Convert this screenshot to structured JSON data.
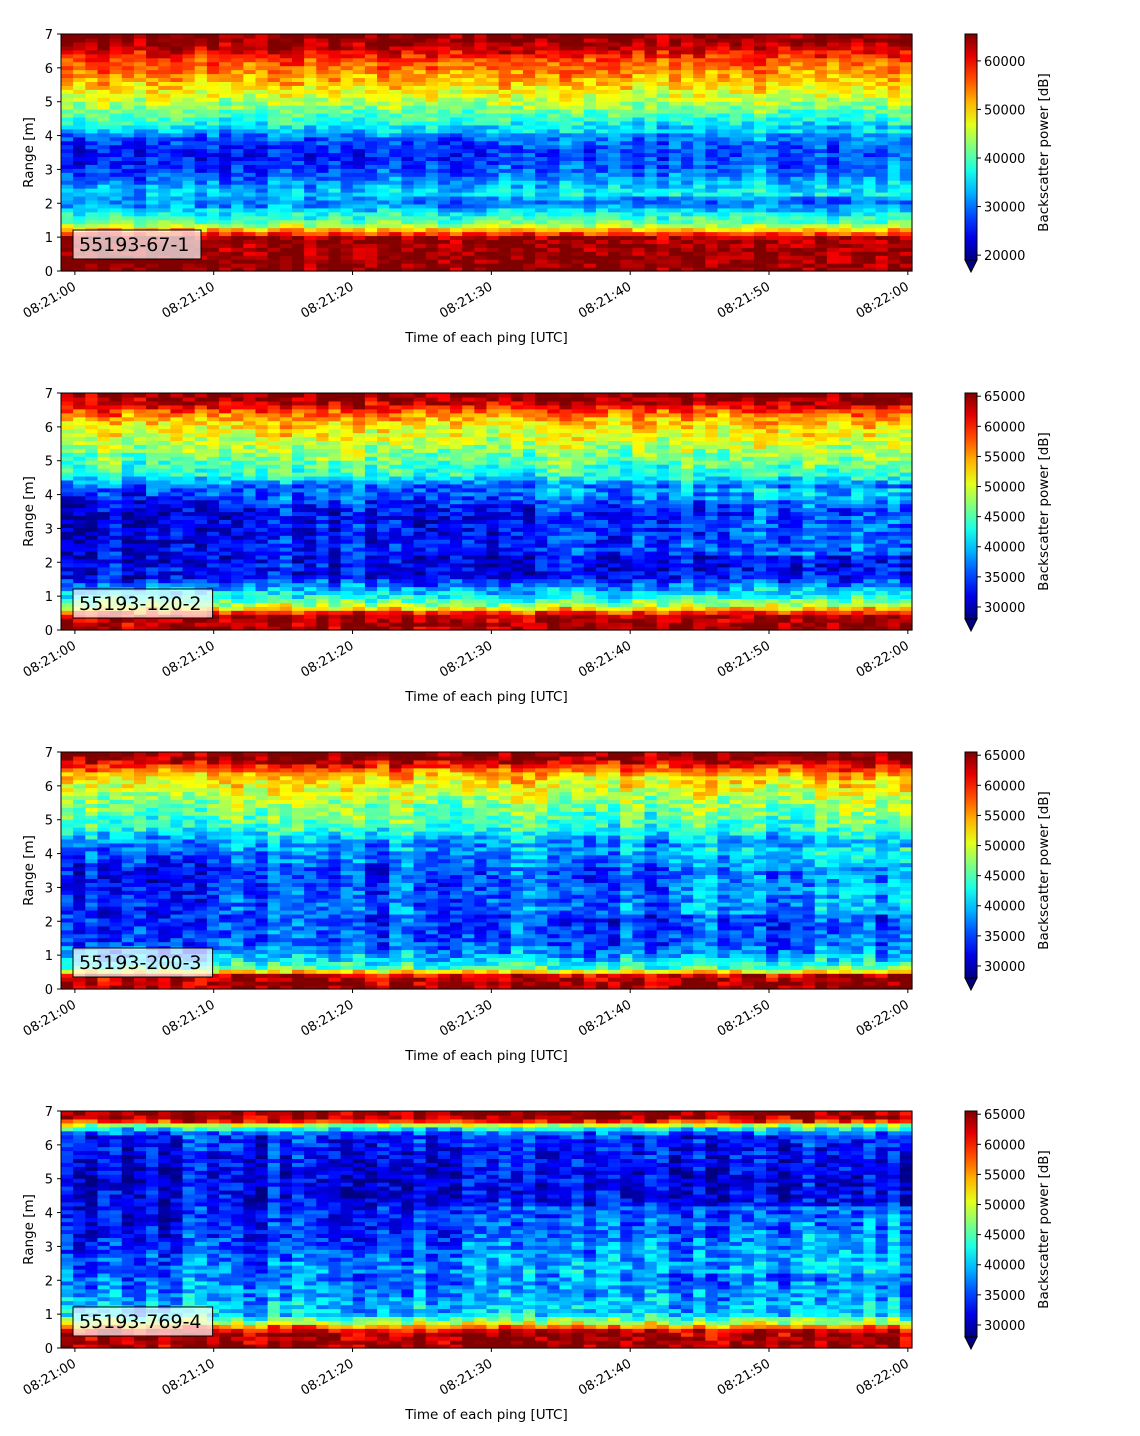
{
  "chart_data": [
    {
      "type": "heatmap",
      "label": "55193-67-1",
      "xlabel": "Time of each ping [UTC]",
      "ylabel": "Range [m]",
      "xticks": [
        "08:21:00",
        "08:21:10",
        "08:21:20",
        "08:21:30",
        "08:21:40",
        "08:21:50",
        "08:22:00"
      ],
      "xrange_seconds": [
        -1,
        60.3
      ],
      "yticks": [
        "0",
        "1",
        "2",
        "3",
        "4",
        "5",
        "6",
        "7"
      ],
      "ylim": [
        0,
        7
      ],
      "colorbar": {
        "label": "Backscatter power [dB]",
        "ticks": [
          "20000",
          "30000",
          "40000",
          "50000",
          "60000"
        ],
        "tick_values": [
          20000,
          30000,
          40000,
          50000,
          60000
        ],
        "range": [
          19000,
          65535
        ],
        "extend": "min",
        "colormap": "jet"
      },
      "profile": [
        {
          "range_m": 0.0,
          "value": 65000
        },
        {
          "range_m": 0.25,
          "value": 65000
        },
        {
          "range_m": 1.0,
          "value": 64000
        },
        {
          "range_m": 1.2,
          "value": 52000
        },
        {
          "range_m": 1.4,
          "value": 42000
        },
        {
          "range_m": 1.7,
          "value": 37000
        },
        {
          "range_m": 2.0,
          "value": 30000
        },
        {
          "range_m": 2.3,
          "value": 33000
        },
        {
          "range_m": 3.0,
          "value": 26000
        },
        {
          "range_m": 3.5,
          "value": 24000
        },
        {
          "range_m": 4.0,
          "value": 28000
        },
        {
          "range_m": 4.3,
          "value": 36000
        },
        {
          "range_m": 4.8,
          "value": 42000
        },
        {
          "range_m": 5.5,
          "value": 50000
        },
        {
          "range_m": 6.2,
          "value": 56000
        },
        {
          "range_m": 6.6,
          "value": 62000
        },
        {
          "range_m": 6.8,
          "value": 65000
        },
        {
          "range_m": 7.0,
          "value": 65000
        }
      ]
    },
    {
      "type": "heatmap",
      "label": "55193-120-2",
      "xlabel": "Time of each ping [UTC]",
      "ylabel": "Range [m]",
      "xticks": [
        "08:21:00",
        "08:21:10",
        "08:21:20",
        "08:21:30",
        "08:21:40",
        "08:21:50",
        "08:22:00"
      ],
      "xrange_seconds": [
        -1,
        60.3
      ],
      "yticks": [
        "0",
        "1",
        "2",
        "3",
        "4",
        "5",
        "6",
        "7"
      ],
      "ylim": [
        0,
        7
      ],
      "colorbar": {
        "label": "Backscatter power [dB]",
        "ticks": [
          "30000",
          "35000",
          "40000",
          "45000",
          "50000",
          "55000",
          "60000",
          "65000"
        ],
        "tick_values": [
          30000,
          35000,
          40000,
          45000,
          50000,
          55000,
          60000,
          65000
        ],
        "range": [
          28000,
          65535
        ],
        "extend": "min",
        "colormap": "jet"
      },
      "profile": [
        {
          "range_m": 0.0,
          "value": 65000
        },
        {
          "range_m": 0.45,
          "value": 64000
        },
        {
          "range_m": 0.7,
          "value": 50000
        },
        {
          "range_m": 1.0,
          "value": 43000
        },
        {
          "range_m": 1.3,
          "value": 38000
        },
        {
          "range_m": 1.6,
          "value": 33000
        },
        {
          "range_m": 2.5,
          "value": 32000
        },
        {
          "range_m": 3.5,
          "value": 31000
        },
        {
          "range_m": 4.2,
          "value": 36000
        },
        {
          "range_m": 4.6,
          "value": 44000
        },
        {
          "range_m": 5.5,
          "value": 49000
        },
        {
          "range_m": 6.2,
          "value": 54000
        },
        {
          "range_m": 6.6,
          "value": 61000
        },
        {
          "range_m": 6.8,
          "value": 65000
        },
        {
          "range_m": 7.0,
          "value": 65000
        }
      ]
    },
    {
      "type": "heatmap",
      "label": "55193-200-3",
      "xlabel": "Time of each ping [UTC]",
      "ylabel": "Range [m]",
      "xticks": [
        "08:21:00",
        "08:21:10",
        "08:21:20",
        "08:21:30",
        "08:21:40",
        "08:21:50",
        "08:22:00"
      ],
      "xrange_seconds": [
        -1,
        60.3
      ],
      "yticks": [
        "0",
        "1",
        "2",
        "3",
        "4",
        "5",
        "6",
        "7"
      ],
      "ylim": [
        0,
        7
      ],
      "colorbar": {
        "label": "Backscatter power [dB]",
        "ticks": [
          "30000",
          "35000",
          "40000",
          "45000",
          "50000",
          "55000",
          "60000",
          "65000"
        ],
        "tick_values": [
          30000,
          35000,
          40000,
          45000,
          50000,
          55000,
          60000,
          65000
        ],
        "range": [
          28000,
          65535
        ],
        "extend": "min",
        "colormap": "jet"
      },
      "profile": [
        {
          "range_m": 0.0,
          "value": 65000
        },
        {
          "range_m": 0.4,
          "value": 63000
        },
        {
          "range_m": 0.6,
          "value": 45000
        },
        {
          "range_m": 0.9,
          "value": 40000
        },
        {
          "range_m": 1.3,
          "value": 36000
        },
        {
          "range_m": 2.5,
          "value": 34000
        },
        {
          "range_m": 3.5,
          "value": 33000
        },
        {
          "range_m": 4.2,
          "value": 37000
        },
        {
          "range_m": 4.8,
          "value": 44000
        },
        {
          "range_m": 5.6,
          "value": 48000
        },
        {
          "range_m": 6.3,
          "value": 53000
        },
        {
          "range_m": 6.6,
          "value": 60000
        },
        {
          "range_m": 6.8,
          "value": 65000
        },
        {
          "range_m": 7.0,
          "value": 65000
        }
      ]
    },
    {
      "type": "heatmap",
      "label": "55193-769-4",
      "xlabel": "Time of each ping [UTC]",
      "ylabel": "Range [m]",
      "xticks": [
        "08:21:00",
        "08:21:10",
        "08:21:20",
        "08:21:30",
        "08:21:40",
        "08:21:50",
        "08:22:00"
      ],
      "xrange_seconds": [
        -1,
        60.3
      ],
      "yticks": [
        "0",
        "1",
        "2",
        "3",
        "4",
        "5",
        "6",
        "7"
      ],
      "ylim": [
        0,
        7
      ],
      "colorbar": {
        "label": "Backscatter power [dB]",
        "ticks": [
          "30000",
          "35000",
          "40000",
          "45000",
          "50000",
          "55000",
          "60000",
          "65000"
        ],
        "tick_values": [
          30000,
          35000,
          40000,
          45000,
          50000,
          55000,
          60000,
          65000
        ],
        "range": [
          28000,
          65535
        ],
        "extend": "min",
        "colormap": "jet"
      },
      "profile": [
        {
          "range_m": 0.0,
          "value": 65000
        },
        {
          "range_m": 0.5,
          "value": 64000
        },
        {
          "range_m": 0.75,
          "value": 50000
        },
        {
          "range_m": 1.0,
          "value": 41000
        },
        {
          "range_m": 1.5,
          "value": 39000
        },
        {
          "range_m": 2.5,
          "value": 36000
        },
        {
          "range_m": 3.5,
          "value": 33000
        },
        {
          "range_m": 5.0,
          "value": 32000
        },
        {
          "range_m": 6.3,
          "value": 34000
        },
        {
          "range_m": 6.55,
          "value": 45000
        },
        {
          "range_m": 6.75,
          "value": 64000
        },
        {
          "range_m": 7.0,
          "value": 65000
        }
      ]
    }
  ]
}
